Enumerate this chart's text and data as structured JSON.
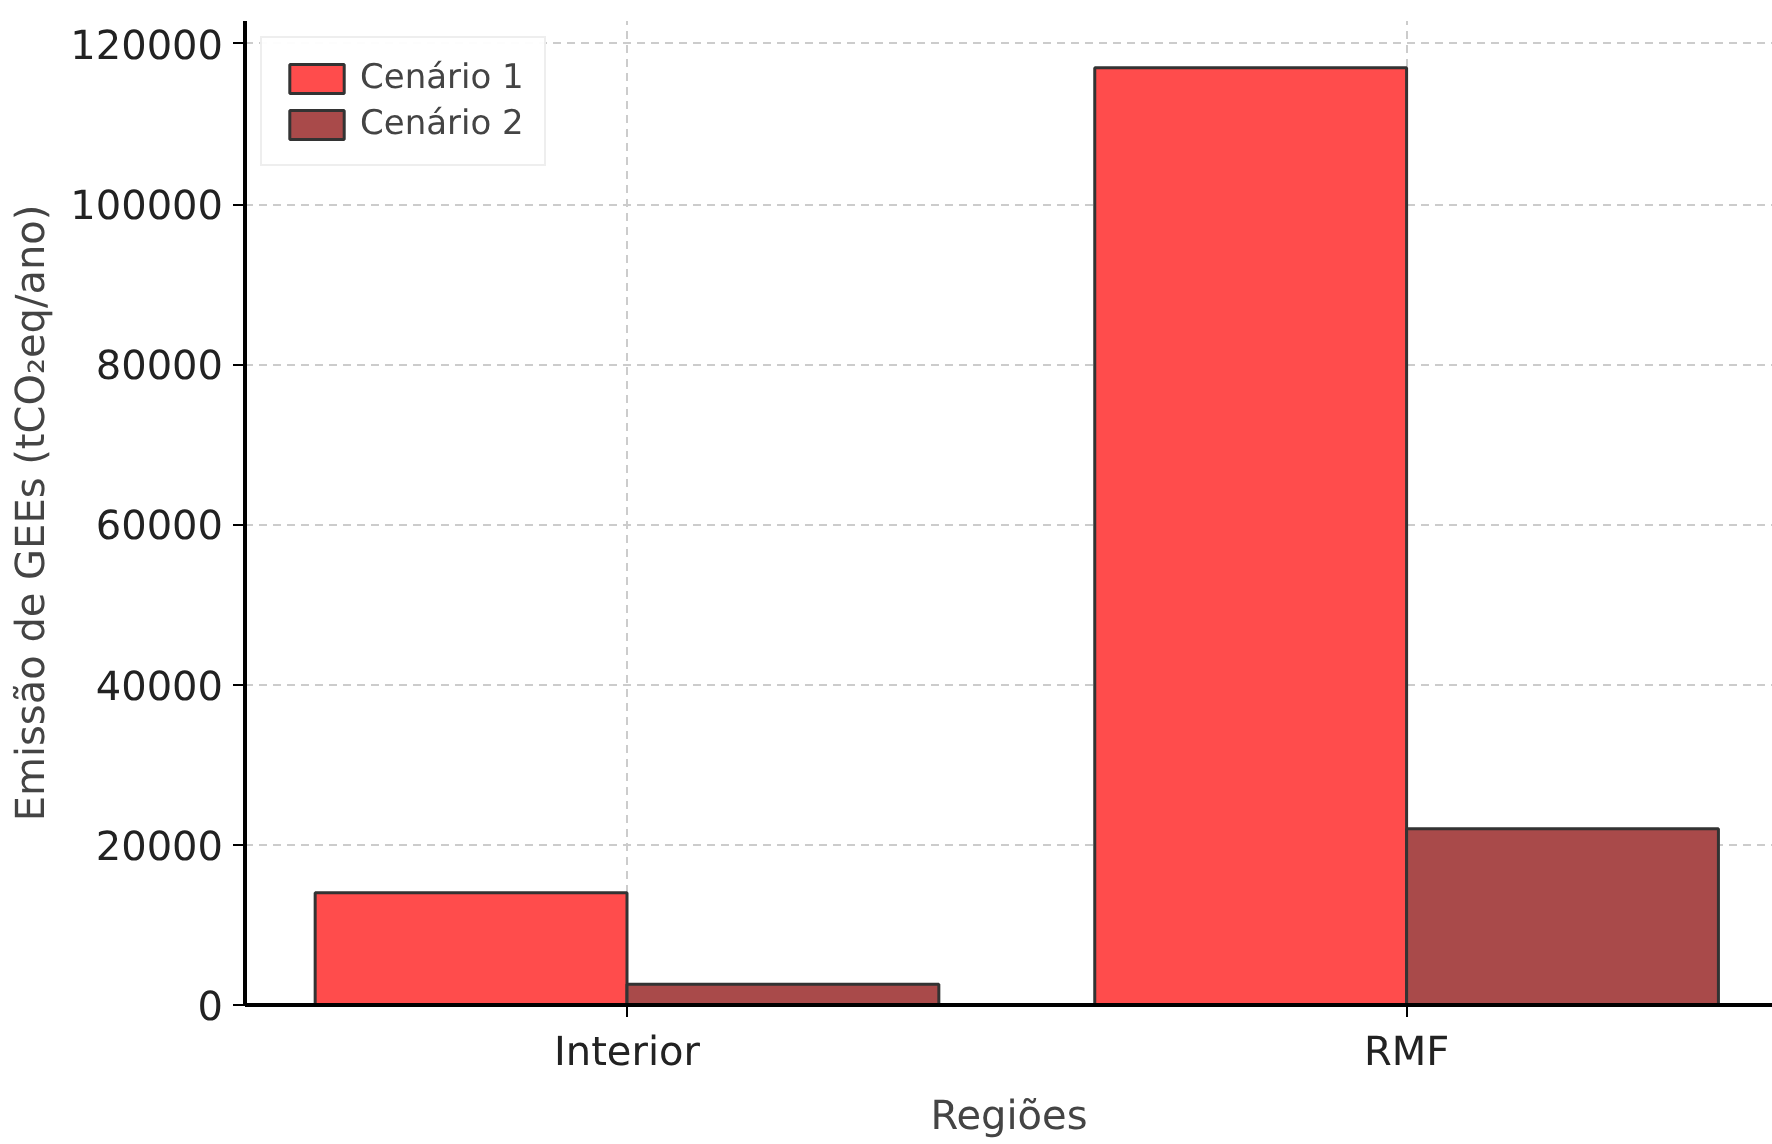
{
  "chart_data": {
    "type": "bar",
    "xlabel": "Regiões",
    "ylabel": "Emissão de GEEs (tCO₂eq/ano)",
    "categories": [
      "Interior",
      "RMF"
    ],
    "series": [
      {
        "name": "Cenário 1",
        "color": "#ff4c4c",
        "values": [
          14000,
          117000
        ]
      },
      {
        "name": "Cenário 2",
        "color": "#a94a4a",
        "values": [
          2600,
          22000
        ]
      }
    ],
    "ylim": [
      0,
      122850
    ],
    "yticks": [
      0,
      20000,
      40000,
      60000,
      80000,
      100000,
      120000
    ],
    "grid": true,
    "legend": "top left"
  }
}
